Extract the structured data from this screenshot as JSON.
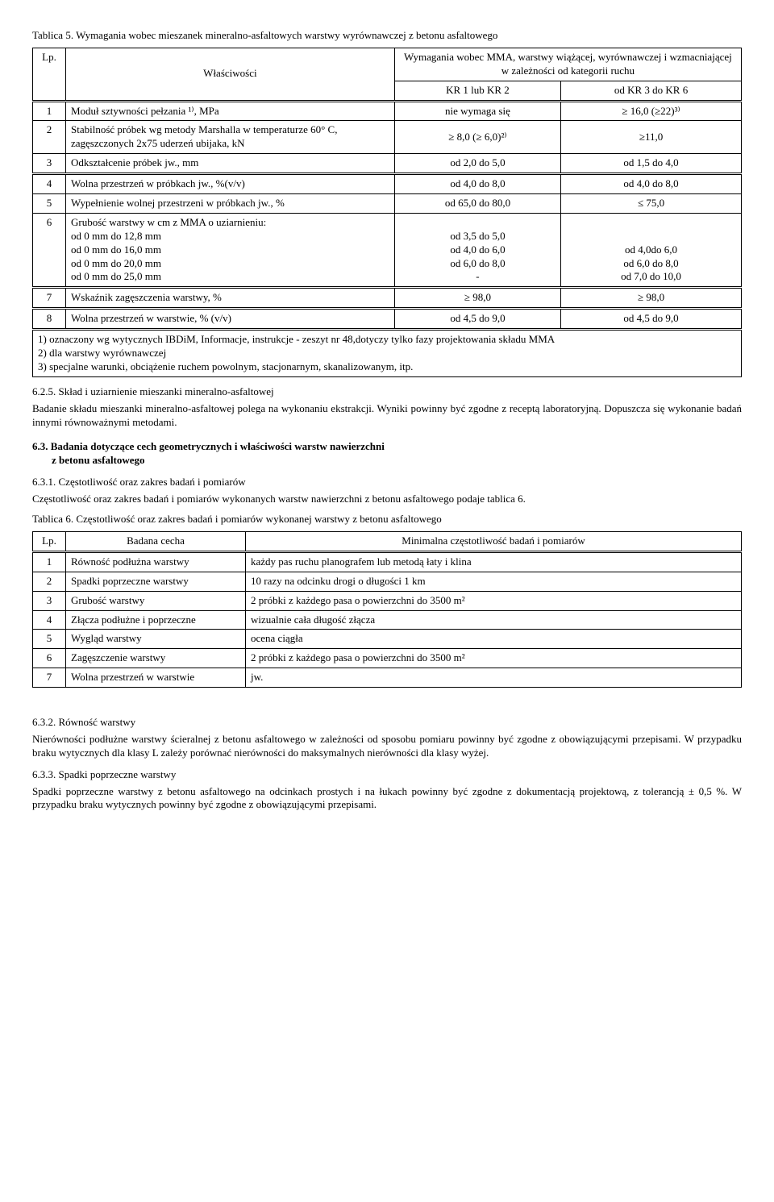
{
  "table5": {
    "title": "Tablica 5. Wymagania wobec mieszanek mineralno-asfaltowych warstwy wyrównawczej z betonu asfaltowego",
    "col_lp": "Lp.",
    "col_prop": "Właściwości",
    "col_req_header": "Wymagania wobec MMA, warstwy wiążącej, wyrównawczej i wzmacniającej w zależności od kategorii ruchu",
    "col_kr12": "KR 1  lub  KR 2",
    "col_kr36": "od KR 3  do  KR 6",
    "rows": [
      {
        "n": "1",
        "prop": "Moduł sztywności pełzania ¹⁾,  MPa",
        "a": "nie wymaga się",
        "b": "≥ 16,0 (≥22)³⁾"
      },
      {
        "n": "2",
        "prop": "Stabilność próbek wg metody Marshalla w temperaturze 60° C, zagęszczonych 2x75 uderzeń ubijaka,  kN",
        "a": "≥ 8,0  (≥ 6,0)²⁾",
        "b": "≥11,0"
      },
      {
        "n": "3",
        "prop": "Odkształcenie próbek jw., mm",
        "a": "od 2,0 do 5,0",
        "b": "od 1,5 do 4,0"
      },
      {
        "n": "4",
        "prop": "Wolna przestrzeń w próbkach jw., %(v/v)",
        "a": "od 4,0 do 8,0",
        "b": "od 4,0 do 8,0"
      },
      {
        "n": "5",
        "prop": "Wypełnienie wolnej przestrzeni w próbkach jw., %",
        "a": "od 65,0 do 80,0",
        "b": "≤ 75,0"
      },
      {
        "n": "6",
        "prop": "Grubość warstwy w cm z MMA o uziarnieniu:\nod 0 mm do 12,8 mm\nod 0 mm do 16,0 mm\nod 0 mm do 20,0 mm\nod 0 mm do 25,0 mm",
        "a": "\nod 3,5 do 5,0\nod 4,0 do 6,0\nod 6,0 do 8,0\n-",
        "b": "\n\nod 4,0do 6,0\nod 6,0 do 8,0\nod 7,0 do 10,0"
      },
      {
        "n": "7",
        "prop": "Wskaźnik zagęszczenia warstwy, %",
        "a": "≥ 98,0",
        "b": "≥ 98,0"
      },
      {
        "n": "8",
        "prop": "Wolna przestrzeń w warstwie,  % (v/v)",
        "a": "od 4,5 do 9,0",
        "b": "od 4,5 do 9,0"
      }
    ],
    "notes": "1)  oznaczony wg wytycznych IBDiM, Informacje, instrukcje - zeszyt nr 48,dotyczy tylko fazy projektowania   składu MMA\n2)  dla warstwy wyrównawczej\n3)  specjalne warunki, obciążenie ruchem powolnym, stacjonarnym, skanalizowanym, itp."
  },
  "s625": {
    "head": "6.2.5. Skład i uziarnienie mieszanki mineralno-asfaltowej",
    "p": "Badanie składu mieszanki mineralno-asfaltowej polega na wykonaniu ekstrakcji. Wyniki powinny być zgodne z receptą laboratoryjną. Dopuszcza się wykonanie badań innymi równoważnymi metodami."
  },
  "s63": {
    "head": "6.3. Badania dotyczące cech geometrycznych i właściwości warstw nawierzchni",
    "head2": "z betonu asfaltowego"
  },
  "s631": {
    "head": "6.3.1. Częstotliwość oraz zakres badań i pomiarów",
    "p": "Częstotliwość oraz zakres badań i pomiarów wykonanych warstw nawierzchni z betonu asfaltowego podaje tablica 6."
  },
  "table6": {
    "title": "Tablica 6. Częstotliwość oraz zakres badań i pomiarów wykonanej warstwy z betonu asfaltowego",
    "col_lp": "Lp.",
    "col_name": "Badana cecha",
    "col_freq": "Minimalna częstotliwość badań i pomiarów",
    "rows": [
      {
        "n": "1",
        "name": "Równość podłużna warstwy",
        "f": "każdy pas ruchu planografem lub metodą łaty i klina"
      },
      {
        "n": "2",
        "name": "Spadki poprzeczne warstwy",
        "f": "10 razy na odcinku drogi o długości 1 km"
      },
      {
        "n": "3",
        "name": "Grubość warstwy",
        "f": "2 próbki z każdego pasa o powierzchni do 3500 m²"
      },
      {
        "n": "4",
        "name": "Złącza podłużne i poprzeczne",
        "f": "wizualnie cała długość złącza"
      },
      {
        "n": "5",
        "name": "Wygląd warstwy",
        "f": "ocena ciągła"
      },
      {
        "n": "6",
        "name": "Zagęszczenie warstwy",
        "f": "2 próbki z każdego pasa o powierzchni do 3500 m²"
      },
      {
        "n": "7",
        "name": "Wolna przestrzeń w warstwie",
        "f": "jw."
      }
    ]
  },
  "s632": {
    "head": "6.3.2. Równość warstwy",
    "p": "Nierówności podłużne warstwy ścieralnej z betonu asfaltowego  w zależności od sposobu pomiaru powinny być zgodne z obowiązującymi przepisami. W przypadku braku wytycznych dla klasy L zależy porównać nierówności do maksymalnych nierówności dla klasy wyżej."
  },
  "s633": {
    "head": "6.3.3. Spadki poprzeczne warstwy",
    "p": "Spadki poprzeczne warstwy z betonu asfaltowego na odcinkach prostych i na łukach powinny być zgodne z dokumentacją projektową, z tolerancją ± 0,5 %. W przypadku braku wytycznych powinny być zgodne z obowiązującymi przepisami."
  }
}
